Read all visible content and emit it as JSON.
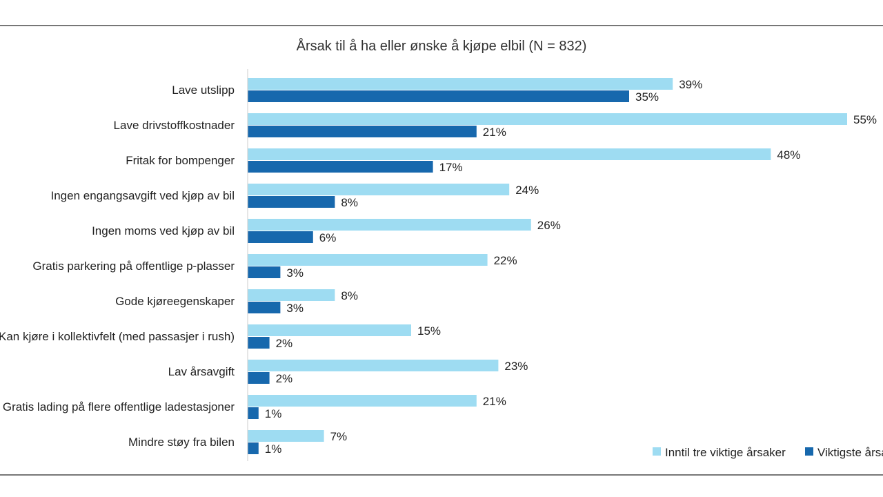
{
  "chart_data": {
    "type": "bar",
    "orientation": "horizontal",
    "title": "Årsak til å ha eller ønske å kjøpe elbil (N = 832)",
    "categories": [
      "Lave utslipp",
      "Lave drivstoffkostnader",
      "Fritak for bompenger",
      "Ingen engangsavgift ved kjøp av bil",
      "Ingen moms ved kjøp av bil",
      "Gratis parkering på offentlige p-plasser",
      "Gode kjøreegenskaper",
      "Kan kjøre i kollektivfelt (med passasjer i rush)",
      "Lav årsavgift",
      "Gratis lading på flere offentlige ladestasjoner",
      "Mindre støy fra bilen"
    ],
    "series": [
      {
        "name": "Inntil tre viktige årsaker",
        "color": "#9edcf2",
        "values": [
          39,
          55,
          48,
          24,
          26,
          22,
          8,
          15,
          23,
          21,
          7
        ]
      },
      {
        "name": "Viktigste årsak",
        "color": "#1768ad",
        "values": [
          35,
          21,
          17,
          8,
          6,
          3,
          3,
          2,
          2,
          1,
          1
        ]
      }
    ],
    "value_suffix": "%",
    "xlim": [
      0,
      57
    ],
    "grid": false,
    "legend": "bottom-right"
  }
}
